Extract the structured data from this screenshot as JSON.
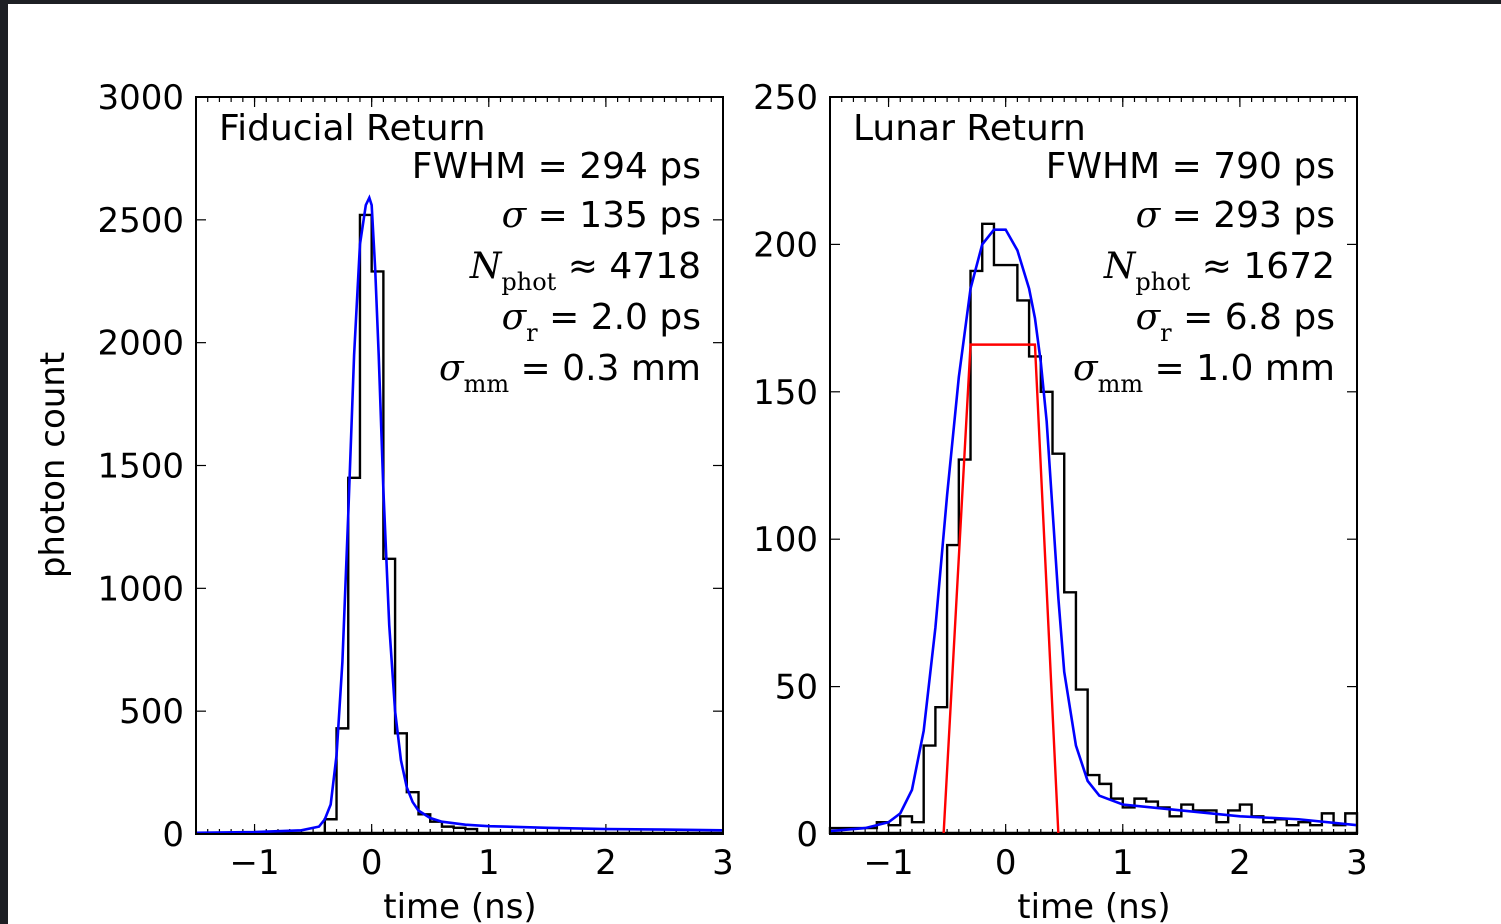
{
  "chart_data": [
    {
      "type": "line",
      "title": "Fiducial Return",
      "xlabel": "time (ns)",
      "ylabel": "photon count",
      "xlim": [
        -1.5,
        3
      ],
      "ylim": [
        0,
        3000
      ],
      "xticks": [
        -1,
        0,
        1,
        2,
        3
      ],
      "yticks": [
        0,
        500,
        1000,
        1500,
        2000,
        2500,
        3000
      ],
      "xtick_labels": [
        "−1",
        "0",
        "1",
        "2",
        "3"
      ],
      "ytick_labels": [
        "0",
        "500",
        "1000",
        "1500",
        "2000",
        "2500",
        "3000"
      ],
      "annotations": [
        {
          "text": "FWHM = 294 ps"
        },
        {
          "sym": "σ",
          "sub": "",
          "text": " = 135 ps"
        },
        {
          "sym": "N",
          "sub": "phot",
          "text": " ≈ 4718"
        },
        {
          "sym": "σ",
          "sub": "r",
          "text": " = 2.0 ps"
        },
        {
          "sym": "σ",
          "sub": "mm",
          "text": " = 0.3 mm"
        }
      ],
      "histogram": {
        "bin_width": 0.1,
        "bins": [
          [
            -0.4,
            60
          ],
          [
            -0.3,
            430
          ],
          [
            -0.2,
            1450
          ],
          [
            -0.1,
            2520
          ],
          [
            0.0,
            2290
          ],
          [
            0.1,
            1120
          ],
          [
            0.2,
            410
          ],
          [
            0.3,
            170
          ],
          [
            0.4,
            80
          ],
          [
            0.5,
            50
          ],
          [
            0.6,
            30
          ],
          [
            0.7,
            25
          ],
          [
            0.8,
            20
          ]
        ]
      },
      "fit_curve": {
        "x": [
          -1.5,
          -1.0,
          -0.6,
          -0.45,
          -0.4,
          -0.35,
          -0.3,
          -0.25,
          -0.2,
          -0.15,
          -0.1,
          -0.05,
          -0.02,
          0.0,
          0.03,
          0.06,
          0.1,
          0.15,
          0.2,
          0.25,
          0.3,
          0.35,
          0.4,
          0.5,
          0.6,
          0.8,
          1.0,
          1.5,
          2.0,
          2.5,
          3.0
        ],
        "y": [
          5,
          8,
          15,
          30,
          60,
          120,
          320,
          700,
          1300,
          1950,
          2400,
          2560,
          2590,
          2560,
          2300,
          1950,
          1400,
          850,
          500,
          300,
          190,
          130,
          95,
          65,
          50,
          38,
          32,
          25,
          20,
          18,
          15
        ]
      }
    },
    {
      "type": "line",
      "title": "Lunar Return",
      "xlabel": "time (ns)",
      "ylabel": "",
      "xlim": [
        -1.5,
        3
      ],
      "ylim": [
        0,
        250
      ],
      "xticks": [
        -1,
        0,
        1,
        2,
        3
      ],
      "yticks": [
        0,
        50,
        100,
        150,
        200,
        250
      ],
      "xtick_labels": [
        "−1",
        "0",
        "1",
        "2",
        "3"
      ],
      "ytick_labels": [
        "0",
        "50",
        "100",
        "150",
        "200",
        "250"
      ],
      "annotations": [
        {
          "text": "FWHM = 790 ps"
        },
        {
          "sym": "σ",
          "sub": "",
          "text": " = 293 ps"
        },
        {
          "sym": "N",
          "sub": "phot",
          "text": " ≈ 1672"
        },
        {
          "sym": "σ",
          "sub": "r",
          "text": " = 6.8 ps"
        },
        {
          "sym": "σ",
          "sub": "mm",
          "text": " = 1.0 mm"
        }
      ],
      "histogram": {
        "bin_width": 0.1,
        "bins": [
          [
            -1.5,
            2
          ],
          [
            -1.4,
            2
          ],
          [
            -1.3,
            2
          ],
          [
            -1.2,
            2
          ],
          [
            -1.1,
            4
          ],
          [
            -1.0,
            3
          ],
          [
            -0.9,
            6
          ],
          [
            -0.8,
            4
          ],
          [
            -0.7,
            30
          ],
          [
            -0.6,
            43
          ],
          [
            -0.5,
            98
          ],
          [
            -0.4,
            127
          ],
          [
            -0.3,
            191
          ],
          [
            -0.2,
            207
          ],
          [
            -0.1,
            193
          ],
          [
            0.0,
            193
          ],
          [
            0.1,
            181
          ],
          [
            0.2,
            162
          ],
          [
            0.3,
            150
          ],
          [
            0.4,
            129
          ],
          [
            0.5,
            82
          ],
          [
            0.6,
            49
          ],
          [
            0.7,
            20
          ],
          [
            0.8,
            17
          ],
          [
            0.9,
            12
          ],
          [
            1.0,
            9
          ],
          [
            1.1,
            12
          ],
          [
            1.2,
            11
          ],
          [
            1.3,
            9
          ],
          [
            1.4,
            6
          ],
          [
            1.5,
            10
          ],
          [
            1.6,
            8
          ],
          [
            1.7,
            8
          ],
          [
            1.8,
            4
          ],
          [
            1.9,
            8
          ],
          [
            2.0,
            10
          ],
          [
            2.1,
            6
          ],
          [
            2.2,
            4
          ],
          [
            2.3,
            5
          ],
          [
            2.4,
            3
          ],
          [
            2.5,
            4
          ],
          [
            2.6,
            3
          ],
          [
            2.7,
            7
          ],
          [
            2.8,
            3
          ],
          [
            2.9,
            7
          ],
          [
            3.0,
            4
          ]
        ]
      },
      "fit_curve": {
        "x": [
          -1.5,
          -1.2,
          -1.0,
          -0.9,
          -0.8,
          -0.7,
          -0.6,
          -0.5,
          -0.4,
          -0.3,
          -0.2,
          -0.1,
          0.0,
          0.1,
          0.2,
          0.25,
          0.3,
          0.35,
          0.4,
          0.45,
          0.5,
          0.6,
          0.7,
          0.8,
          1.0,
          1.5,
          2.0,
          2.5,
          3.0
        ],
        "y": [
          1,
          2,
          4,
          7,
          15,
          35,
          70,
          115,
          155,
          185,
          200,
          205,
          205,
          198,
          185,
          175,
          160,
          140,
          110,
          80,
          55,
          30,
          18,
          13,
          10,
          8,
          6,
          5,
          3
        ]
      },
      "trapezoid": {
        "x": [
          -0.53,
          -0.3,
          0.25,
          0.45
        ],
        "y": [
          0,
          166,
          166,
          0
        ]
      }
    }
  ]
}
